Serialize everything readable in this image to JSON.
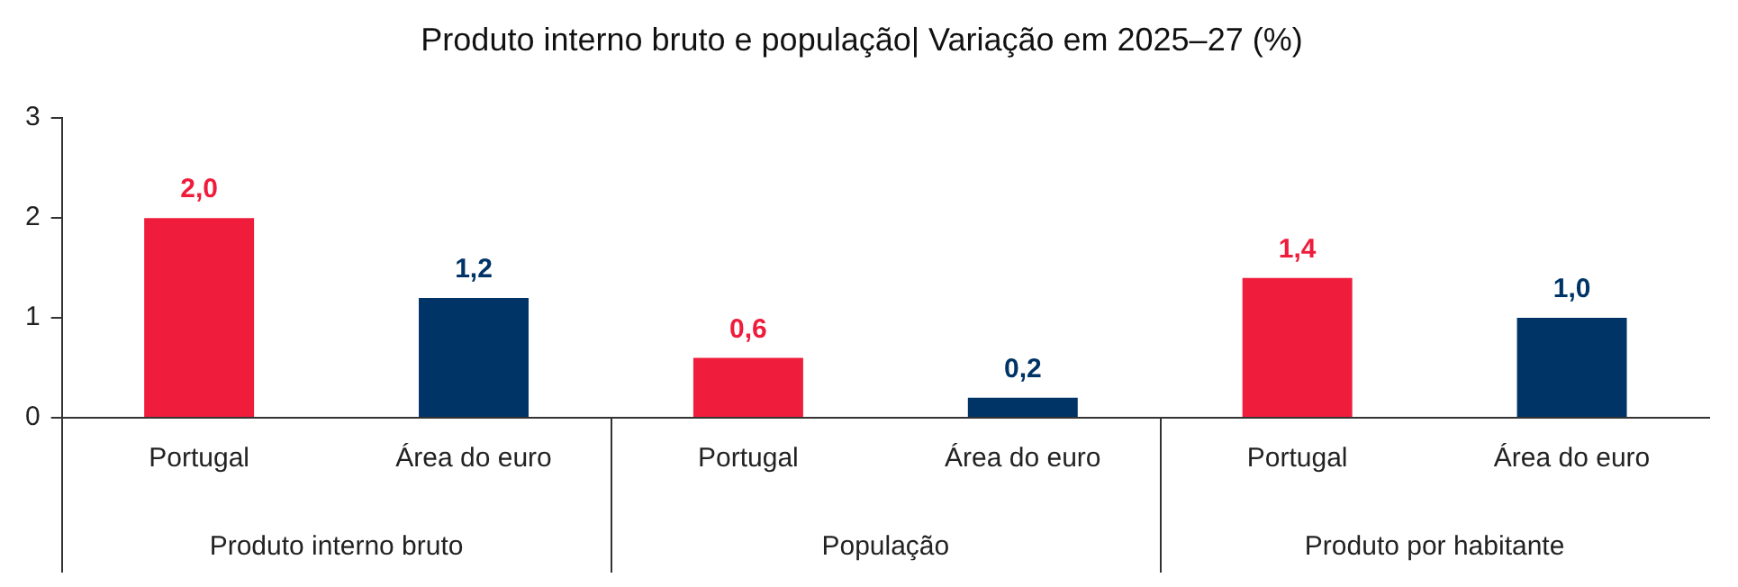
{
  "chart_data": {
    "type": "bar",
    "title": "Produto interno bruto e população| Variação em 2025–27 (%)",
    "categories": [
      "Portugal",
      "Área do euro",
      "Portugal",
      "Área do euro",
      "Portugal",
      "Área do euro"
    ],
    "values": [
      2.0,
      1.2,
      0.6,
      0.2,
      1.4,
      1.0
    ],
    "colors": [
      "#ef1c3c",
      "#003366",
      "#ef1c3c",
      "#003366",
      "#ef1c3c",
      "#003366"
    ],
    "value_labels": [
      "2,0",
      "1,2",
      "0,6",
      "0,2",
      "1,4",
      "1,0"
    ],
    "annotations": [
      "Produto interno bruto",
      "População",
      "Produto por habitante"
    ],
    "ylim": [
      0,
      3
    ],
    "yticks": [
      0,
      1,
      2,
      3
    ],
    "grid": false,
    "legend": false
  }
}
